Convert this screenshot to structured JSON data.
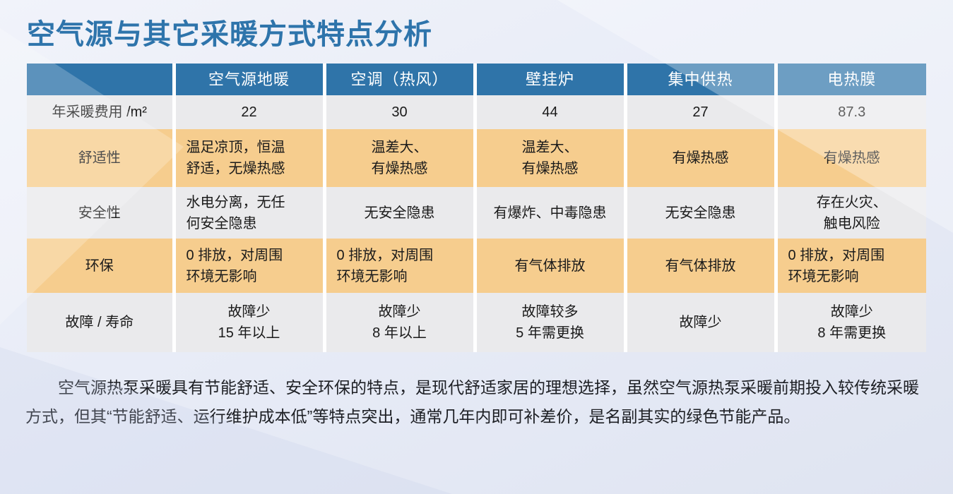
{
  "title": "空气源与其它采暖方式特点分析",
  "colors": {
    "title_blue": "#2e74ab",
    "header_blue": "#2f74a9",
    "row_orange": "#f6cd8e",
    "row_gray": "#eaeaec",
    "background": "#e8ecf7"
  },
  "table": {
    "columns": [
      "",
      "空气源地暖",
      "空调（热风）",
      "壁挂炉",
      "集中供热",
      "电热膜"
    ],
    "rows": [
      {
        "label": "年采暖费用 /m²",
        "highlight": false,
        "cells": [
          {
            "lines": [
              "22"
            ],
            "align": "center"
          },
          {
            "lines": [
              "30"
            ],
            "align": "center"
          },
          {
            "lines": [
              "44"
            ],
            "align": "center"
          },
          {
            "lines": [
              "27"
            ],
            "align": "center"
          },
          {
            "lines": [
              "87.3"
            ],
            "align": "center"
          }
        ]
      },
      {
        "label": "舒适性",
        "highlight": true,
        "cells": [
          {
            "lines": [
              "温足凉顶，恒温",
              "舒适，无燥热感"
            ],
            "align": "left"
          },
          {
            "lines": [
              "温差大、",
              "有燥热感"
            ],
            "align": "center"
          },
          {
            "lines": [
              "温差大、",
              "有燥热感"
            ],
            "align": "center"
          },
          {
            "lines": [
              "有燥热感"
            ],
            "align": "center"
          },
          {
            "lines": [
              "有燥热感"
            ],
            "align": "center"
          }
        ]
      },
      {
        "label": "安全性",
        "highlight": false,
        "cells": [
          {
            "lines": [
              "水电分离，无任",
              "何安全隐患"
            ],
            "align": "left"
          },
          {
            "lines": [
              "无安全隐患"
            ],
            "align": "center"
          },
          {
            "lines": [
              "有爆炸、中毒隐患"
            ],
            "align": "center"
          },
          {
            "lines": [
              "无安全隐患"
            ],
            "align": "center"
          },
          {
            "lines": [
              "存在火灾、",
              "触电风险"
            ],
            "align": "center"
          }
        ]
      },
      {
        "label": "环保",
        "highlight": true,
        "cells": [
          {
            "lines": [
              "0 排放，对周围",
              "环境无影响"
            ],
            "align": "left"
          },
          {
            "lines": [
              "0 排放，对周围",
              "环境无影响"
            ],
            "align": "left"
          },
          {
            "lines": [
              "有气体排放"
            ],
            "align": "center"
          },
          {
            "lines": [
              "有气体排放"
            ],
            "align": "center"
          },
          {
            "lines": [
              "0 排放，对周围",
              "环境无影响"
            ],
            "align": "left"
          }
        ]
      },
      {
        "label": "故障 / 寿命",
        "highlight": false,
        "cells": [
          {
            "lines": [
              "故障少",
              "15 年以上"
            ],
            "align": "center"
          },
          {
            "lines": [
              "故障少",
              "8 年以上"
            ],
            "align": "center"
          },
          {
            "lines": [
              "故障较多",
              "5 年需更换"
            ],
            "align": "center"
          },
          {
            "lines": [
              "故障少"
            ],
            "align": "center"
          },
          {
            "lines": [
              "故障少",
              "8 年需更换"
            ],
            "align": "center"
          }
        ]
      }
    ]
  },
  "paragraph": "空气源热泵采暖具有节能舒适、安全环保的特点，是现代舒适家居的理想选择，虽然空气源热泵采暖前期投入较传统采暖方式，但其“节能舒适、运行维护成本低”等特点突出，通常几年内即可补差价，是名副其实的绿色节能产品。"
}
